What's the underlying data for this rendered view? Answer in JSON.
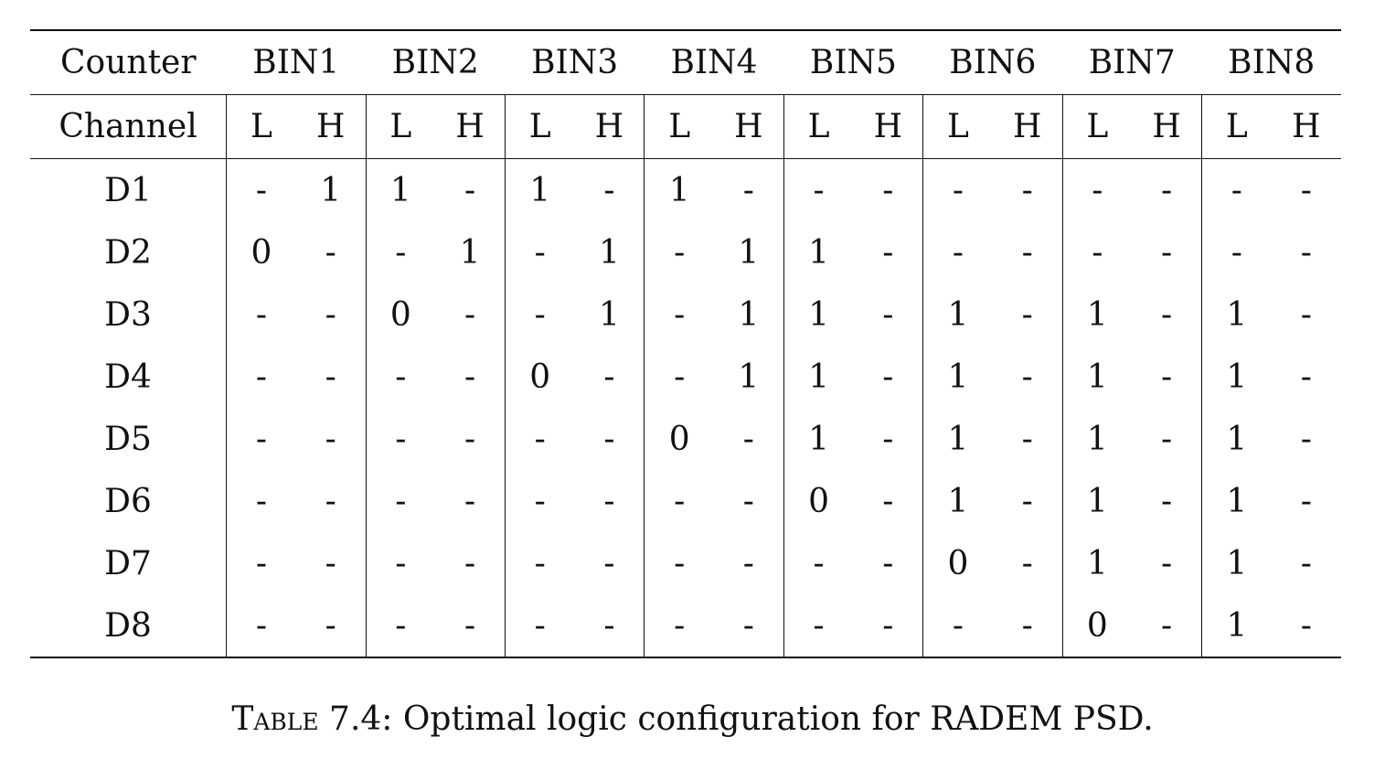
{
  "table": {
    "counter_header": "Counter",
    "bins": [
      "BIN1",
      "BIN2",
      "BIN3",
      "BIN4",
      "BIN5",
      "BIN6",
      "BIN7",
      "BIN8"
    ],
    "channel_header": "Channel",
    "sub_low": "L",
    "sub_high": "H",
    "rows": [
      {
        "channel": "D1",
        "cells": [
          "-",
          "1",
          "1",
          "-",
          "1",
          "-",
          "1",
          "-",
          "-",
          "-",
          "-",
          "-",
          "-",
          "-",
          "-",
          "-"
        ]
      },
      {
        "channel": "D2",
        "cells": [
          "0",
          "-",
          "-",
          "1",
          "-",
          "1",
          "-",
          "1",
          "1",
          "-",
          "-",
          "-",
          "-",
          "-",
          "-",
          "-"
        ]
      },
      {
        "channel": "D3",
        "cells": [
          "-",
          "-",
          "0",
          "-",
          "-",
          "1",
          "-",
          "1",
          "1",
          "-",
          "1",
          "-",
          "1",
          "-",
          "1",
          "-"
        ]
      },
      {
        "channel": "D4",
        "cells": [
          "-",
          "-",
          "-",
          "-",
          "0",
          "-",
          "-",
          "1",
          "1",
          "-",
          "1",
          "-",
          "1",
          "-",
          "1",
          "-"
        ]
      },
      {
        "channel": "D5",
        "cells": [
          "-",
          "-",
          "-",
          "-",
          "-",
          "-",
          "0",
          "-",
          "1",
          "-",
          "1",
          "-",
          "1",
          "-",
          "1",
          "-"
        ]
      },
      {
        "channel": "D6",
        "cells": [
          "-",
          "-",
          "-",
          "-",
          "-",
          "-",
          "-",
          "-",
          "0",
          "-",
          "1",
          "-",
          "1",
          "-",
          "1",
          "-"
        ]
      },
      {
        "channel": "D7",
        "cells": [
          "-",
          "-",
          "-",
          "-",
          "-",
          "-",
          "-",
          "-",
          "-",
          "-",
          "0",
          "-",
          "1",
          "-",
          "1",
          "-"
        ]
      },
      {
        "channel": "D8",
        "cells": [
          "-",
          "-",
          "-",
          "-",
          "-",
          "-",
          "-",
          "-",
          "-",
          "-",
          "-",
          "-",
          "0",
          "-",
          "1",
          "-"
        ]
      }
    ]
  },
  "caption": {
    "label": "Table 7.4:",
    "text": "Optimal logic configuration for RADEM PSD."
  }
}
